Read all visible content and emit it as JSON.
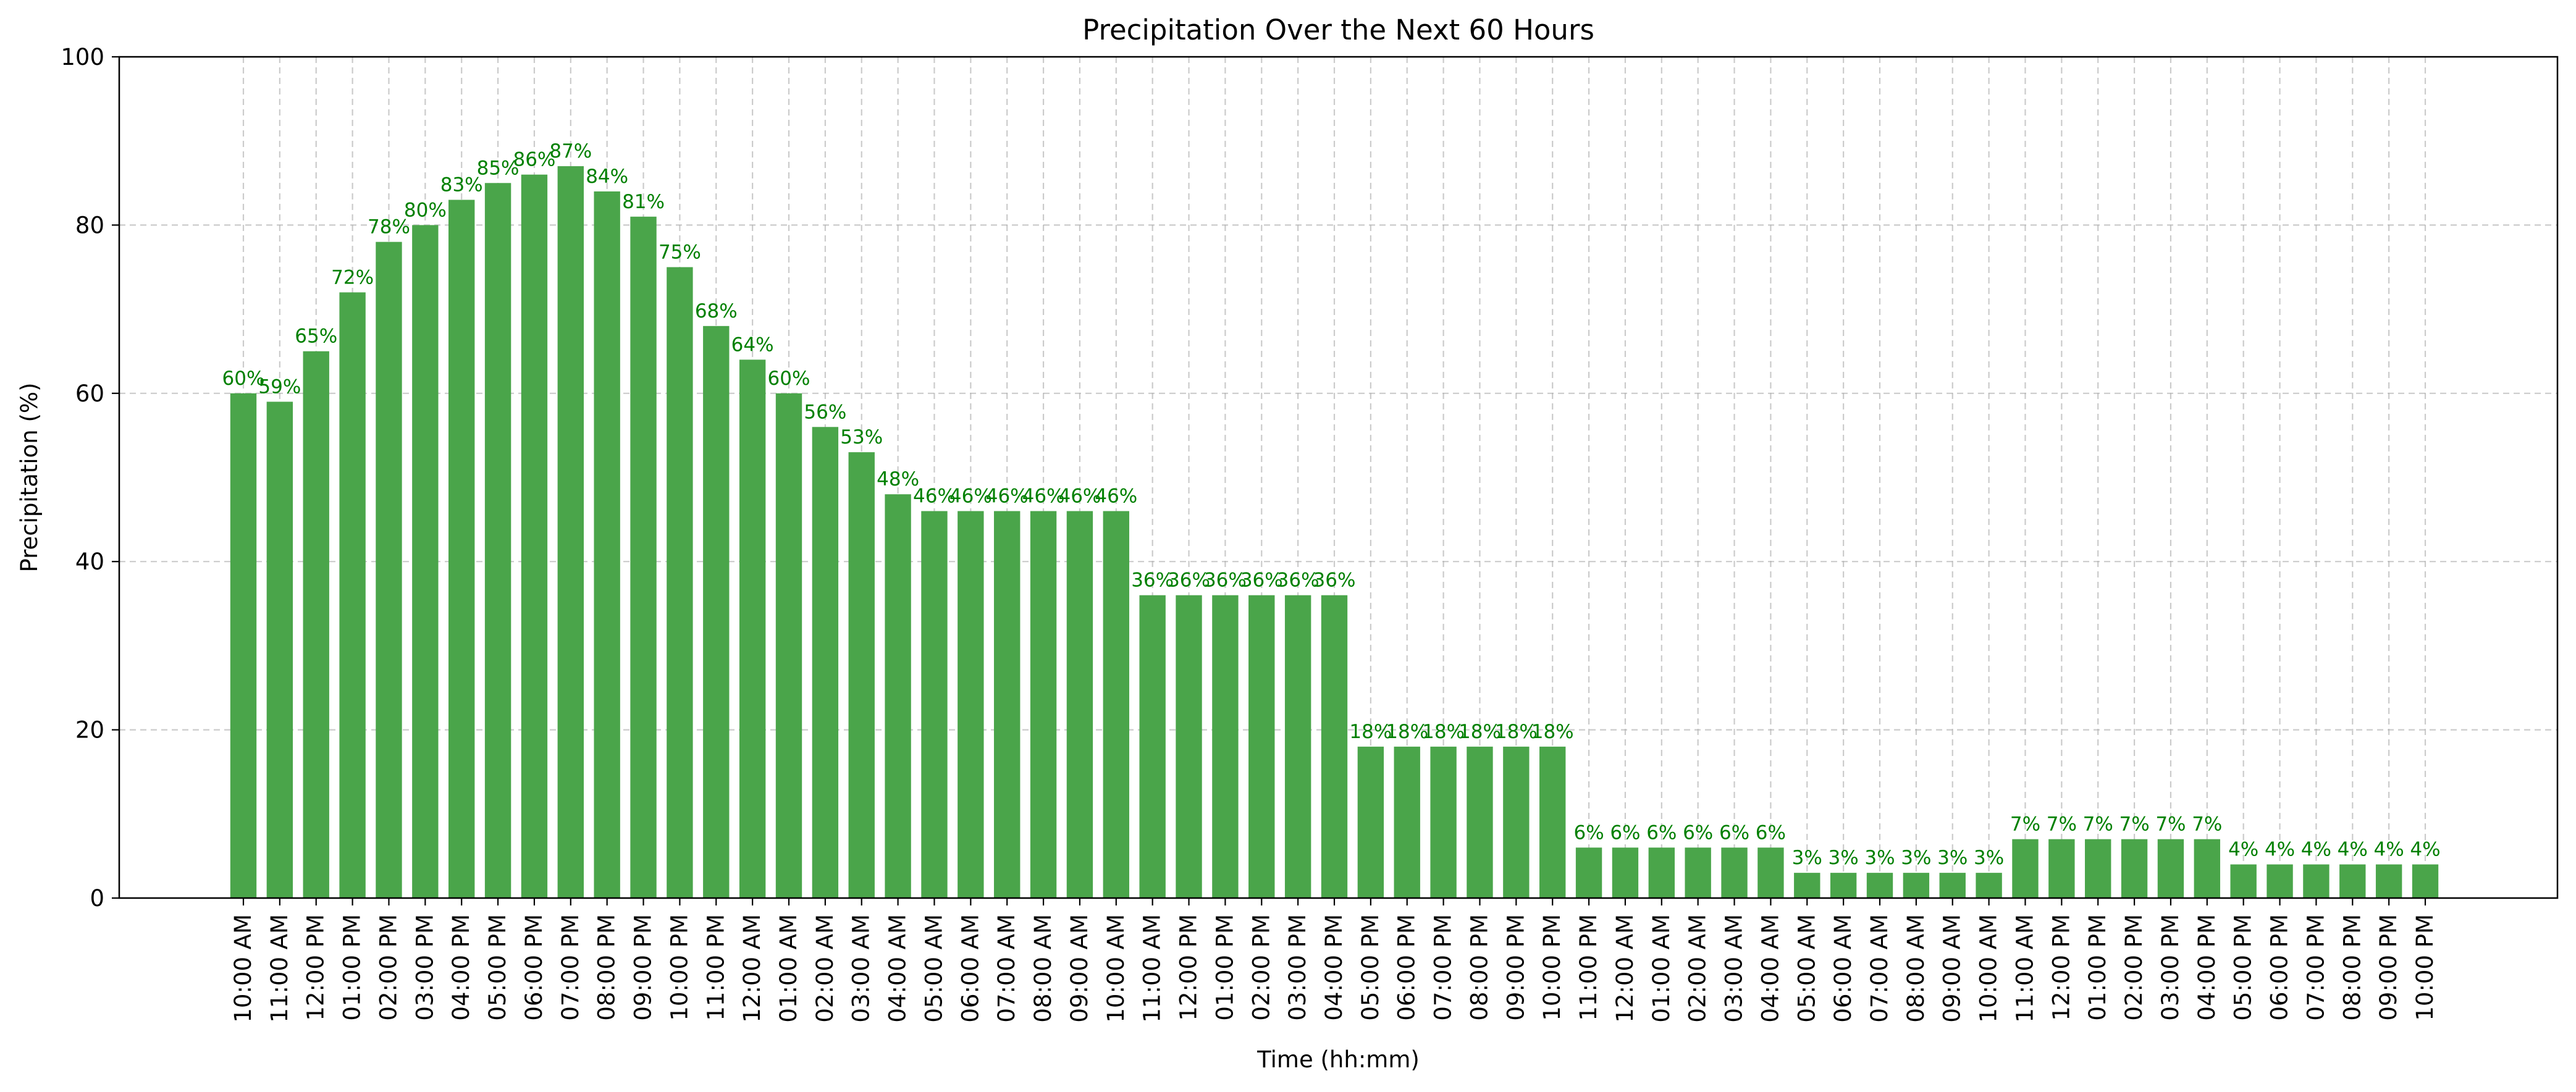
{
  "chart_data": {
    "type": "bar",
    "title": "Precipitation Over the Next 60 Hours",
    "xlabel": "Time (hh:mm)",
    "ylabel": "Precipitation (%)",
    "ylim": [
      0,
      100
    ],
    "yticks": [
      0,
      20,
      40,
      60,
      80,
      100
    ],
    "grid": true,
    "bar_color": "#4aa54a",
    "label_color": "#008000",
    "value_suffix": "%",
    "categories": [
      "10:00 AM",
      "11:00 AM",
      "12:00 PM",
      "01:00 PM",
      "02:00 PM",
      "03:00 PM",
      "04:00 PM",
      "05:00 PM",
      "06:00 PM",
      "07:00 PM",
      "08:00 PM",
      "09:00 PM",
      "10:00 PM",
      "11:00 PM",
      "12:00 AM",
      "01:00 AM",
      "02:00 AM",
      "03:00 AM",
      "04:00 AM",
      "05:00 AM",
      "06:00 AM",
      "07:00 AM",
      "08:00 AM",
      "09:00 AM",
      "10:00 AM",
      "11:00 AM",
      "12:00 PM",
      "01:00 PM",
      "02:00 PM",
      "03:00 PM",
      "04:00 PM",
      "05:00 PM",
      "06:00 PM",
      "07:00 PM",
      "08:00 PM",
      "09:00 PM",
      "10:00 PM",
      "11:00 PM",
      "12:00 AM",
      "01:00 AM",
      "02:00 AM",
      "03:00 AM",
      "04:00 AM",
      "05:00 AM",
      "06:00 AM",
      "07:00 AM",
      "08:00 AM",
      "09:00 AM",
      "10:00 AM",
      "11:00 AM",
      "12:00 PM",
      "01:00 PM",
      "02:00 PM",
      "03:00 PM",
      "04:00 PM",
      "05:00 PM",
      "06:00 PM",
      "07:00 PM",
      "08:00 PM",
      "09:00 PM",
      "10:00 PM"
    ],
    "values": [
      60,
      59,
      65,
      72,
      78,
      80,
      83,
      85,
      86,
      87,
      84,
      81,
      75,
      68,
      64,
      60,
      56,
      53,
      48,
      46,
      46,
      46,
      46,
      46,
      46,
      36,
      36,
      36,
      36,
      36,
      36,
      18,
      18,
      18,
      18,
      18,
      18,
      6,
      6,
      6,
      6,
      6,
      6,
      3,
      3,
      3,
      3,
      3,
      3,
      7,
      7,
      7,
      7,
      7,
      7,
      4,
      4,
      4,
      4,
      4,
      4
    ]
  }
}
